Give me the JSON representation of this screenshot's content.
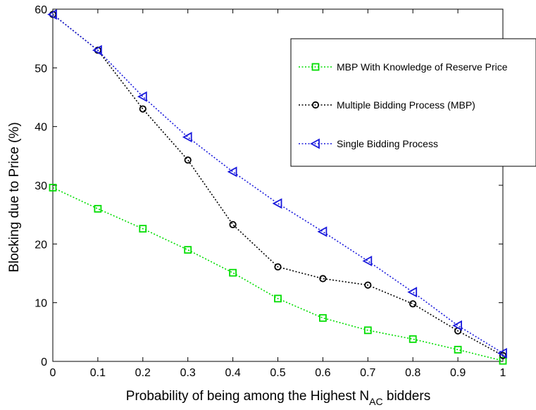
{
  "chart_data": {
    "type": "line",
    "title": "",
    "xlabel": {
      "main": "Probability of being among the Highest N",
      "subscript": "AC",
      "suffix": " bidders"
    },
    "ylabel": "Blocking due to Price  (%)",
    "xlim": [
      0,
      1
    ],
    "ylim": [
      0,
      60
    ],
    "x_ticks": [
      "0",
      "0.1",
      "0.2",
      "0.3",
      "0.4",
      "0.5",
      "0.6",
      "0.7",
      "0.8",
      "0.9",
      "1"
    ],
    "y_ticks": [
      "0",
      "10",
      "20",
      "30",
      "40",
      "50",
      "60"
    ],
    "grid": false,
    "legend_position": "top-right",
    "x": [
      0,
      0.1,
      0.2,
      0.3,
      0.4,
      0.5,
      0.6,
      0.7,
      0.8,
      0.9,
      1.0
    ],
    "series": [
      {
        "name": "MBP With Knowledge of Reserve Price",
        "color": "#00dd00",
        "marker": "square",
        "values": [
          29.6,
          26.0,
          22.6,
          19.0,
          15.1,
          10.7,
          7.4,
          5.3,
          3.8,
          2.0,
          0.1
        ]
      },
      {
        "name": "Multiple Bidding Process (MBP)",
        "color": "#000000",
        "marker": "circle",
        "values": [
          59.1,
          53.0,
          43.0,
          34.3,
          23.3,
          16.1,
          14.1,
          13.0,
          9.8,
          5.2,
          1.0
        ]
      },
      {
        "name": "Single Bidding Process",
        "color": "#1a1adc",
        "marker": "triangle-left",
        "values": [
          59.1,
          53.0,
          45.1,
          38.2,
          32.3,
          26.9,
          22.1,
          17.1,
          11.8,
          6.1,
          1.4
        ]
      }
    ]
  }
}
